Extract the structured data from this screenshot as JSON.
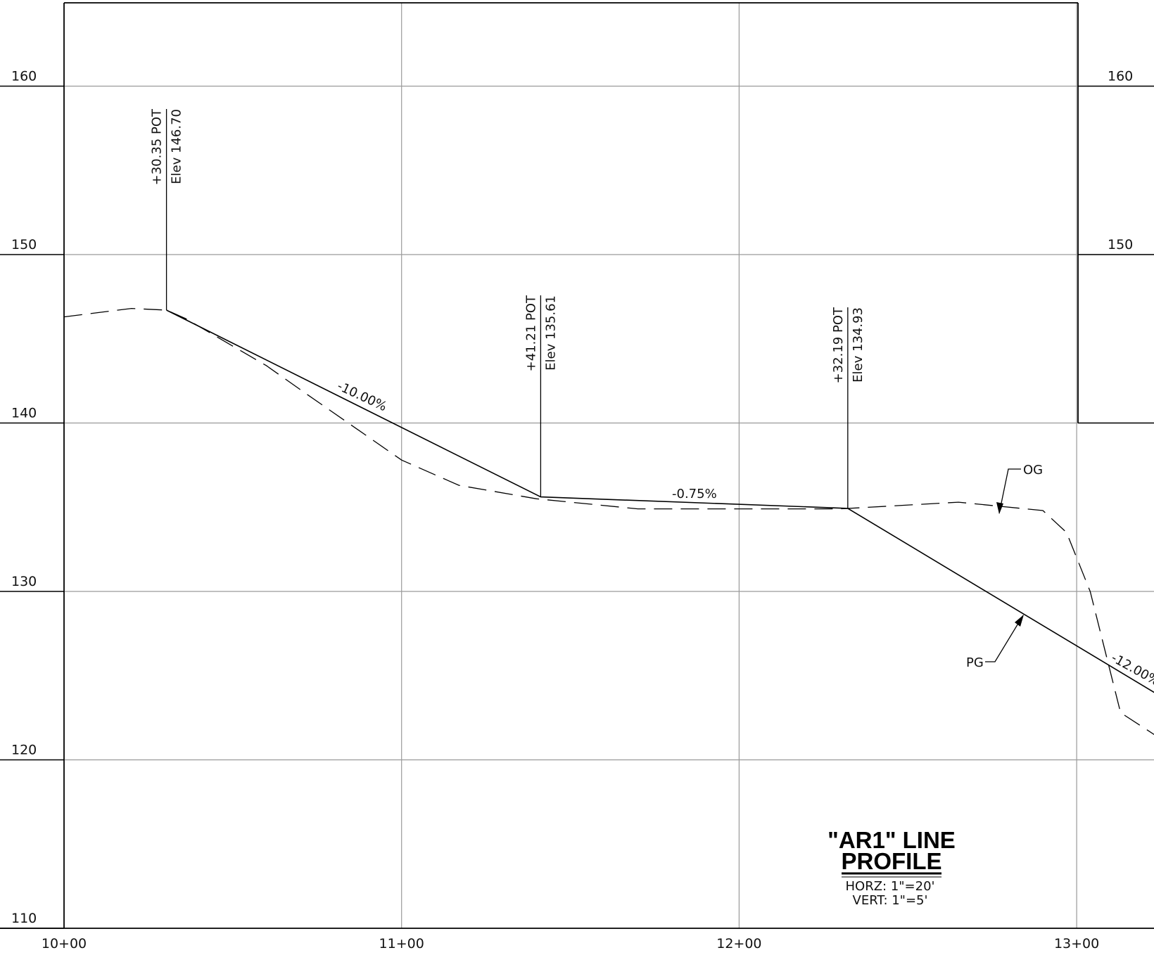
{
  "title": {
    "line1": "\"AR1\" LINE",
    "line2": "PROFILE",
    "horz": "HORZ: 1\"=20'",
    "vert": "VERT:  1\"=5'"
  },
  "axes": {
    "stations": [
      {
        "value": 1000,
        "label": "10+00"
      },
      {
        "value": 1100,
        "label": "11+00"
      },
      {
        "value": 1200,
        "label": "12+00"
      },
      {
        "value": 1300,
        "label": "13+00"
      }
    ],
    "elevations_left": [
      {
        "value": 160,
        "label": "160"
      },
      {
        "value": 150,
        "label": "150"
      },
      {
        "value": 140,
        "label": "140"
      },
      {
        "value": 130,
        "label": "130"
      },
      {
        "value": 120,
        "label": "120"
      },
      {
        "value": 110,
        "label": "110"
      }
    ],
    "elevations_right": [
      {
        "value": 160,
        "label": "160"
      },
      {
        "value": 150,
        "label": "150"
      }
    ]
  },
  "pot_labels": [
    {
      "station": 1030.35,
      "elevation": 146.7,
      "station_text": "+30.35  POT",
      "elev_text": "Elev  146.70"
    },
    {
      "station": 1141.21,
      "elevation": 135.61,
      "station_text": "+41.21  POT",
      "elev_text": "Elev  135.61"
    },
    {
      "station": 1232.19,
      "elevation": 134.93,
      "station_text": "+32.19  POT",
      "elev_text": "Elev  134.93"
    }
  ],
  "grade_labels": [
    {
      "text": "-10.00%"
    },
    {
      "text": "-0.75%"
    },
    {
      "text": "-12.00%"
    }
  ],
  "callouts": {
    "og": "OG",
    "pg": "PG"
  },
  "chart_data": {
    "type": "line",
    "xlabel": "",
    "ylabel": "",
    "xlim": [
      1000,
      1323
    ],
    "ylim": [
      110,
      165
    ],
    "series": [
      {
        "name": "PG",
        "style": "solid",
        "points": [
          [
            1030.35,
            146.7
          ],
          [
            1141.21,
            135.61
          ],
          [
            1232.19,
            134.93
          ],
          [
            1323,
            124.0
          ]
        ]
      },
      {
        "name": "OG",
        "style": "dashed",
        "points": [
          [
            1000,
            146.3
          ],
          [
            1020,
            146.8
          ],
          [
            1030.35,
            146.7
          ],
          [
            1036,
            146.2
          ],
          [
            1060,
            143.4
          ],
          [
            1072,
            141.7
          ],
          [
            1100,
            137.8
          ],
          [
            1117,
            136.3
          ],
          [
            1140,
            135.5
          ],
          [
            1170,
            134.9
          ],
          [
            1205,
            134.9
          ],
          [
            1230,
            134.9
          ],
          [
            1265,
            135.3
          ],
          [
            1290,
            134.8
          ],
          [
            1297,
            133.5
          ],
          [
            1304,
            130.0
          ],
          [
            1313,
            122.8
          ],
          [
            1323,
            121.5
          ]
        ]
      }
    ],
    "grid": true
  }
}
